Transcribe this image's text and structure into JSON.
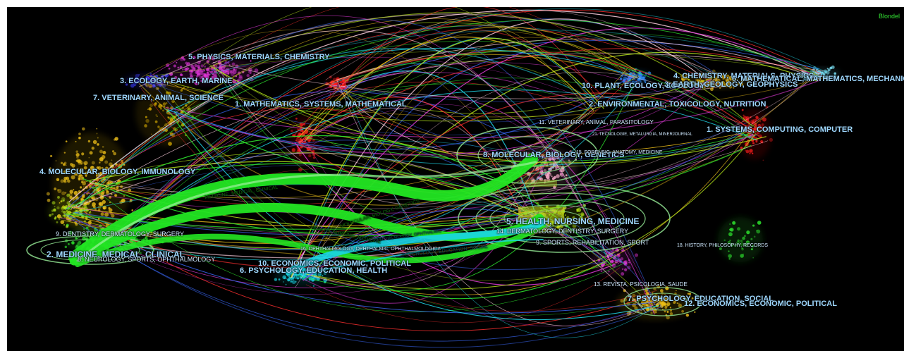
{
  "algorithm_tag": "Blondel",
  "colors": {
    "background": "#000000",
    "label": "#9fd8ff",
    "main_link": "#22e622",
    "secondary_link": "#19d6e6",
    "ellipse": "#8fe08f",
    "tag": "#33e333"
  },
  "left_labels": [
    "5. PHYSICS, MATERIALS, CHEMISTRY",
    "3. ECOLOGY, EARTH, MARINE",
    "7. VETERINARY, ANIMAL, SCIENCE",
    "1. MATHEMATICS, SYSTEMS, MATHEMATICAL",
    "4. MOLECULAR, BIOLOGY, IMMUNOLOGY",
    "9. DENTISTRY, DERMATOLOGY, SURGERY",
    "2. MEDICINE, MEDICAL, CLINICAL",
    "8. NEUROLOGY, SPORTS, OPHTHALMOLOGY",
    "10. ECONOMICS, ECONOMIC, POLITICAL",
    "6. PSYCHOLOGY, EDUCATION, HEALTH",
    "16. OPHTHALMOLOGY, OPHTHALMIC, OPHTHALMOLOGICA"
  ],
  "right_labels": [
    "4. CHEMISTRY, MATERIALS, PHYSICS",
    "6. MATHEMATICAL, MATHEMATICS, MECHANICS",
    "10. PLANT, ECOLOGY, ZOOLOGY",
    "3. EARTH, GEOLOGY, GEOPHYSICS",
    "2. ENVIRONMENTAL, TOXICOLOGY, NUTRITION",
    "1. SYSTEMS, COMPUTING, COMPUTER",
    "11. VETERINARY, ANIMAL, PARASITOLOGY",
    "21. TECNOLOGIE, METALURGIA, MINERJOURNAL",
    "8. MOLECULAR, BIOLOGY, GENETICS",
    "15. FORENSIC, ANATOMY, MEDICINE",
    "5. HEALTH, NURSING, MEDICINE",
    "14. DERMATOLOGY, DENTISTRY, SURGERY",
    "9. SPORTS, REHABILITATION, SPORT",
    "18. HISTORY, PHILOSOPHY, RECORDS",
    "13. REVISTA, PSICOLOGIA, SAUDE",
    "7. PSYCHOLOGY, EDUCATION, SOCIAL",
    "12. ECONOMICS, ECONOMIC, POLITICAL"
  ],
  "link_labels": [
    "MEDICINE, MEDICAL, CLINICAL",
    "HEALTH, NURSING, MEDICINE",
    "MOLECULAR, BIOLOGY, GENETICS",
    "PSYCHOLOGY, EDUCATION, SOCIAL",
    "OPHTHALMOLOGY, OPHTHALMIC"
  ]
}
